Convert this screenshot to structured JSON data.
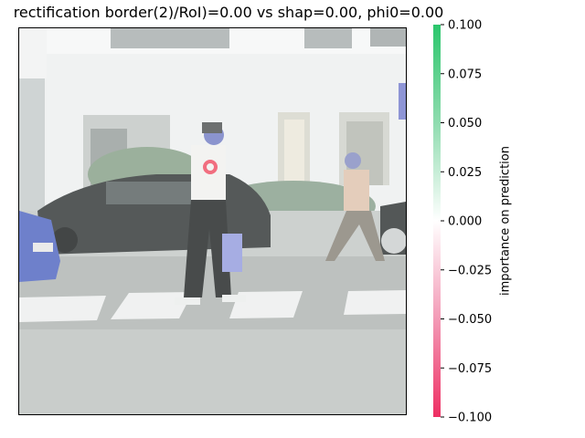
{
  "chart_data": {
    "type": "heatmap",
    "title": "rectification border(2)/RoI)=0.00 vs shap=0.00, phi0=0.00",
    "colorbar": {
      "label": "importance on prediction",
      "min": -0.1,
      "max": 0.1,
      "ticks": [
        "0.100",
        "0.075",
        "0.050",
        "0.025",
        "0.000",
        "−0.025",
        "−0.050",
        "−0.075",
        "−0.100"
      ],
      "tick_values": [
        0.1,
        0.075,
        0.05,
        0.025,
        0.0,
        -0.025,
        -0.05,
        -0.075,
        -0.1
      ],
      "colors": {
        "positive": "#2bc66c",
        "zero": "#ffffff",
        "negative": "#ee2f63"
      }
    },
    "axes_ticks_visible": false,
    "highlight": {
      "description": "red circular marker on pedestrian",
      "color": "#f05a6e"
    }
  }
}
